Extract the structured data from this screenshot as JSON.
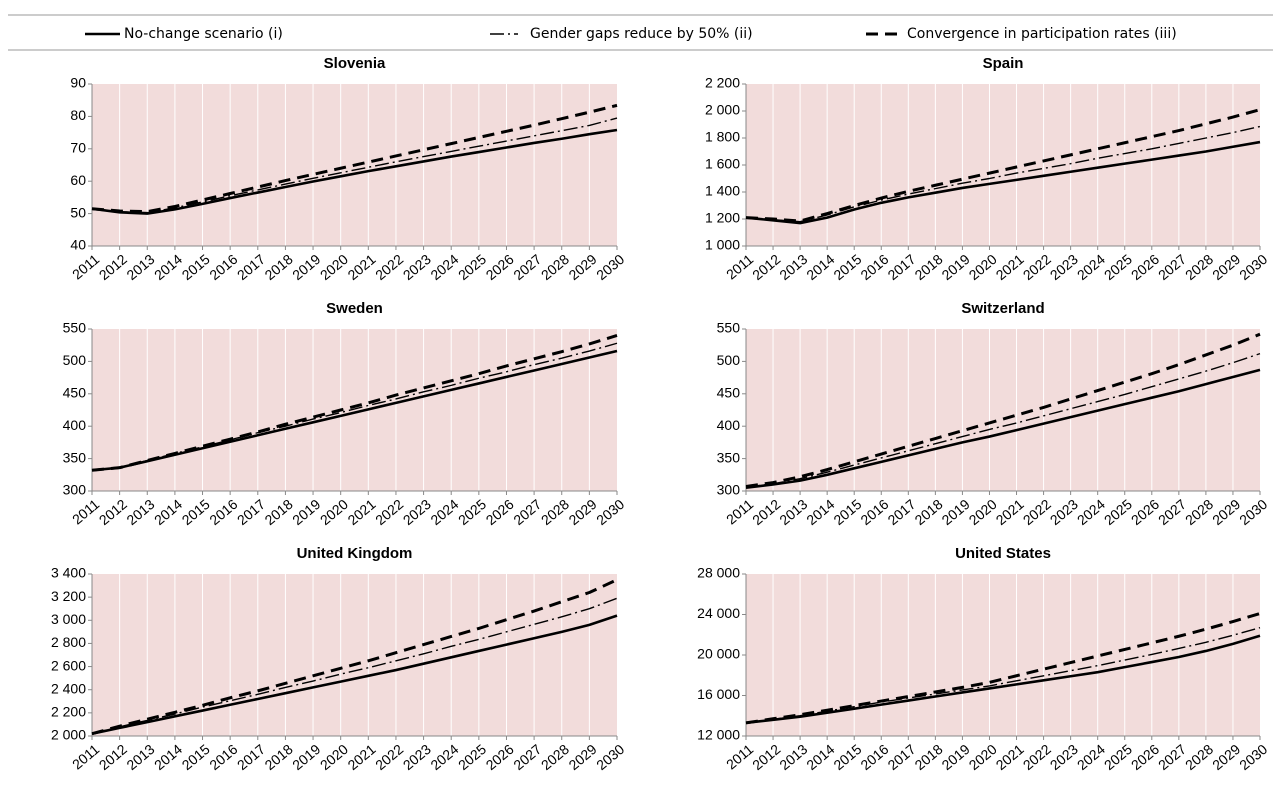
{
  "chart_data": [
    {
      "type": "line",
      "title": "Slovenia",
      "categories": [
        "2011",
        "2012",
        "2013",
        "2014",
        "2015",
        "2016",
        "2017",
        "2018",
        "2019",
        "2020",
        "2021",
        "2022",
        "2023",
        "2024",
        "2025",
        "2026",
        "2027",
        "2028",
        "2029",
        "2030"
      ],
      "ylim": [
        40,
        90
      ],
      "yticks": [
        40,
        50,
        60,
        70,
        80,
        90
      ],
      "grid": true,
      "series": [
        {
          "name": "No-change scenario (i)",
          "color": "#000000",
          "style": "solid",
          "values": [
            51.5,
            50.4,
            50,
            51.3,
            53,
            54.8,
            56.5,
            58.2,
            59.9,
            61.5,
            63.1,
            64.6,
            66.1,
            67.6,
            69,
            70.4,
            71.8,
            73.1,
            74.5,
            75.8
          ]
        },
        {
          "name": "Gender gaps reduce by 50% (ii)",
          "color": "#000000",
          "style": "dashdot",
          "values": [
            51.5,
            50.6,
            50.3,
            51.8,
            53.6,
            55.5,
            57.3,
            59.1,
            60.9,
            62.6,
            64.3,
            66,
            67.6,
            69.2,
            70.8,
            72.4,
            74,
            75.6,
            77.2,
            79.5
          ]
        },
        {
          "name": "Convergence in participation rates (iii)",
          "color": "#000000",
          "style": "dashed",
          "values": [
            51.5,
            50.8,
            50.6,
            52.2,
            54.2,
            56.2,
            58.2,
            60.2,
            62.1,
            64,
            65.9,
            67.8,
            69.7,
            71.6,
            73.5,
            75.4,
            77.3,
            79.3,
            81.3,
            83.4
          ]
        }
      ]
    },
    {
      "type": "line",
      "title": "Spain",
      "categories": [
        "2011",
        "2012",
        "2013",
        "2014",
        "2015",
        "2016",
        "2017",
        "2018",
        "2019",
        "2020",
        "2021",
        "2022",
        "2023",
        "2024",
        "2025",
        "2026",
        "2027",
        "2028",
        "2029",
        "2030"
      ],
      "ylim": [
        1000,
        2200
      ],
      "yticks": [
        {
          "value": 1000,
          "label": "1 000"
        },
        {
          "value": 1200,
          "label": "1 200"
        },
        {
          "value": 1400,
          "label": "1 400"
        },
        {
          "value": 1600,
          "label": "1 600"
        },
        {
          "value": 1800,
          "label": "1 800"
        },
        {
          "value": 2000,
          "label": "2 000"
        },
        {
          "value": 2200,
          "label": "2 200"
        }
      ],
      "grid": true,
      "series": [
        {
          "name": "No-change scenario (i)",
          "color": "#000000",
          "style": "solid",
          "values": [
            1210,
            1190,
            1170,
            1210,
            1270,
            1320,
            1360,
            1395,
            1430,
            1460,
            1490,
            1520,
            1550,
            1580,
            1610,
            1640,
            1670,
            1700,
            1735,
            1770
          ]
        },
        {
          "name": "Gender gaps reduce by 50% (ii)",
          "color": "#000000",
          "style": "dashdot",
          "values": [
            1210,
            1195,
            1180,
            1230,
            1290,
            1340,
            1385,
            1425,
            1465,
            1500,
            1540,
            1575,
            1610,
            1650,
            1685,
            1720,
            1760,
            1800,
            1840,
            1885
          ]
        },
        {
          "name": "Convergence in participation rates (iii)",
          "color": "#000000",
          "style": "dashed",
          "values": [
            1210,
            1200,
            1185,
            1240,
            1300,
            1355,
            1405,
            1450,
            1495,
            1540,
            1585,
            1630,
            1675,
            1720,
            1765,
            1810,
            1855,
            1905,
            1955,
            2010
          ]
        }
      ]
    },
    {
      "type": "line",
      "title": "Sweden",
      "categories": [
        "2011",
        "2012",
        "2013",
        "2014",
        "2015",
        "2016",
        "2017",
        "2018",
        "2019",
        "2020",
        "2021",
        "2022",
        "2023",
        "2024",
        "2025",
        "2026",
        "2027",
        "2028",
        "2029",
        "2030"
      ],
      "ylim": [
        300,
        550
      ],
      "yticks": [
        300,
        350,
        400,
        450,
        500,
        550
      ],
      "grid": true,
      "series": [
        {
          "name": "No-change scenario (i)",
          "color": "#000000",
          "style": "solid",
          "values": [
            332,
            336,
            346,
            356,
            366,
            376,
            386,
            396,
            406,
            416,
            426,
            436,
            446,
            456,
            466,
            476,
            486,
            496,
            506,
            516
          ]
        },
        {
          "name": "Gender gaps reduce by 50% (ii)",
          "color": "#000000",
          "style": "dashdot",
          "values": [
            332,
            336,
            347,
            358,
            368,
            379,
            390,
            400,
            411,
            421,
            432,
            442,
            453,
            463,
            474,
            484,
            495,
            505,
            516,
            528
          ]
        },
        {
          "name": "Convergence in participation rates (iii)",
          "color": "#000000",
          "style": "dashed",
          "values": [
            332,
            336,
            347,
            358,
            369,
            380,
            391,
            403,
            414,
            425,
            436,
            448,
            459,
            470,
            481,
            493,
            504,
            515,
            527,
            540
          ]
        }
      ]
    },
    {
      "type": "line",
      "title": "Switzerland",
      "categories": [
        "2011",
        "2012",
        "2013",
        "2014",
        "2015",
        "2016",
        "2017",
        "2018",
        "2019",
        "2020",
        "2021",
        "2022",
        "2023",
        "2024",
        "2025",
        "2026",
        "2027",
        "2028",
        "2029",
        "2030"
      ],
      "ylim": [
        300,
        550
      ],
      "yticks": [
        300,
        350,
        400,
        450,
        500,
        550
      ],
      "grid": true,
      "series": [
        {
          "name": "No-change scenario (i)",
          "color": "#000000",
          "style": "solid",
          "values": [
            305,
            310,
            316,
            325,
            335,
            345,
            355,
            365,
            375,
            384,
            394,
            404,
            414,
            424,
            434,
            444,
            454,
            465,
            476,
            487
          ]
        },
        {
          "name": "Gender gaps reduce by 50% (ii)",
          "color": "#000000",
          "style": "dashdot",
          "values": [
            306,
            311,
            319,
            329,
            340,
            351,
            362,
            373,
            384,
            395,
            405,
            416,
            427,
            438,
            449,
            461,
            473,
            485,
            498,
            512
          ]
        },
        {
          "name": "Convergence in participation rates (iii)",
          "color": "#000000",
          "style": "dashed",
          "values": [
            307,
            313,
            322,
            333,
            345,
            357,
            369,
            381,
            393,
            405,
            417,
            429,
            442,
            455,
            468,
            481,
            495,
            510,
            525,
            542
          ]
        }
      ]
    },
    {
      "type": "line",
      "title": "United Kingdom",
      "categories": [
        "2011",
        "2012",
        "2013",
        "2014",
        "2015",
        "2016",
        "2017",
        "2018",
        "2019",
        "2020",
        "2021",
        "2022",
        "2023",
        "2024",
        "2025",
        "2026",
        "2027",
        "2028",
        "2029",
        "2030"
      ],
      "ylim": [
        2000,
        3400
      ],
      "yticks": [
        {
          "value": 2000,
          "label": "2 000"
        },
        {
          "value": 2200,
          "label": "2 200"
        },
        {
          "value": 2400,
          "label": "2 400"
        },
        {
          "value": 2600,
          "label": "2 600"
        },
        {
          "value": 2800,
          "label": "2 800"
        },
        {
          "value": 3000,
          "label": "3 000"
        },
        {
          "value": 3200,
          "label": "3 200"
        },
        {
          "value": 3400,
          "label": "3 400"
        }
      ],
      "grid": true,
      "series": [
        {
          "name": "No-change scenario (i)",
          "color": "#000000",
          "style": "solid",
          "values": [
            2020,
            2070,
            2120,
            2170,
            2220,
            2270,
            2320,
            2370,
            2420,
            2470,
            2520,
            2570,
            2625,
            2680,
            2735,
            2790,
            2845,
            2900,
            2960,
            3040
          ]
        },
        {
          "name": "Gender gaps reduce by 50% (ii)",
          "color": "#000000",
          "style": "dashdot",
          "values": [
            2020,
            2080,
            2135,
            2190,
            2250,
            2305,
            2360,
            2420,
            2475,
            2535,
            2590,
            2650,
            2710,
            2775,
            2835,
            2900,
            2965,
            3030,
            3100,
            3190
          ]
        },
        {
          "name": "Convergence in participation rates (iii)",
          "color": "#000000",
          "style": "dashed",
          "values": [
            2020,
            2085,
            2145,
            2205,
            2265,
            2330,
            2390,
            2455,
            2520,
            2585,
            2650,
            2720,
            2790,
            2860,
            2930,
            3005,
            3080,
            3160,
            3240,
            3350
          ]
        }
      ]
    },
    {
      "type": "line",
      "title": "United States",
      "categories": [
        "2011",
        "2012",
        "2013",
        "2014",
        "2015",
        "2016",
        "2017",
        "2018",
        "2019",
        "2020",
        "2021",
        "2022",
        "2023",
        "2024",
        "2025",
        "2026",
        "2027",
        "2028",
        "2029",
        "2030"
      ],
      "ylim": [
        12000,
        28000
      ],
      "yticks": [
        {
          "value": 12000,
          "label": "12 000"
        },
        {
          "value": 16000,
          "label": "16 000"
        },
        {
          "value": 20000,
          "label": "20 000"
        },
        {
          "value": 24000,
          "label": "24 000"
        },
        {
          "value": 28000,
          "label": "28 000"
        }
      ],
      "grid": true,
      "series": [
        {
          "name": "No-change scenario (i)",
          "color": "#000000",
          "style": "solid",
          "values": [
            13300,
            13600,
            13900,
            14300,
            14700,
            15100,
            15500,
            15900,
            16300,
            16700,
            17100,
            17500,
            17900,
            18300,
            18800,
            19300,
            19800,
            20400,
            21100,
            21900
          ]
        },
        {
          "name": "Gender gaps reduce by 50% (ii)",
          "color": "#000000",
          "style": "dashdot",
          "values": [
            13300,
            13650,
            14000,
            14450,
            14900,
            15350,
            15750,
            16150,
            16550,
            16950,
            17450,
            17950,
            18450,
            18950,
            19500,
            20050,
            20650,
            21250,
            21950,
            22700
          ]
        },
        {
          "name": "Convergence in participation rates (iii)",
          "color": "#000000",
          "style": "dashed",
          "values": [
            13300,
            13700,
            14100,
            14550,
            15000,
            15450,
            15900,
            16350,
            16800,
            17300,
            17950,
            18600,
            19250,
            19900,
            20550,
            21200,
            21850,
            22550,
            23300,
            24100
          ]
        }
      ]
    }
  ]
}
